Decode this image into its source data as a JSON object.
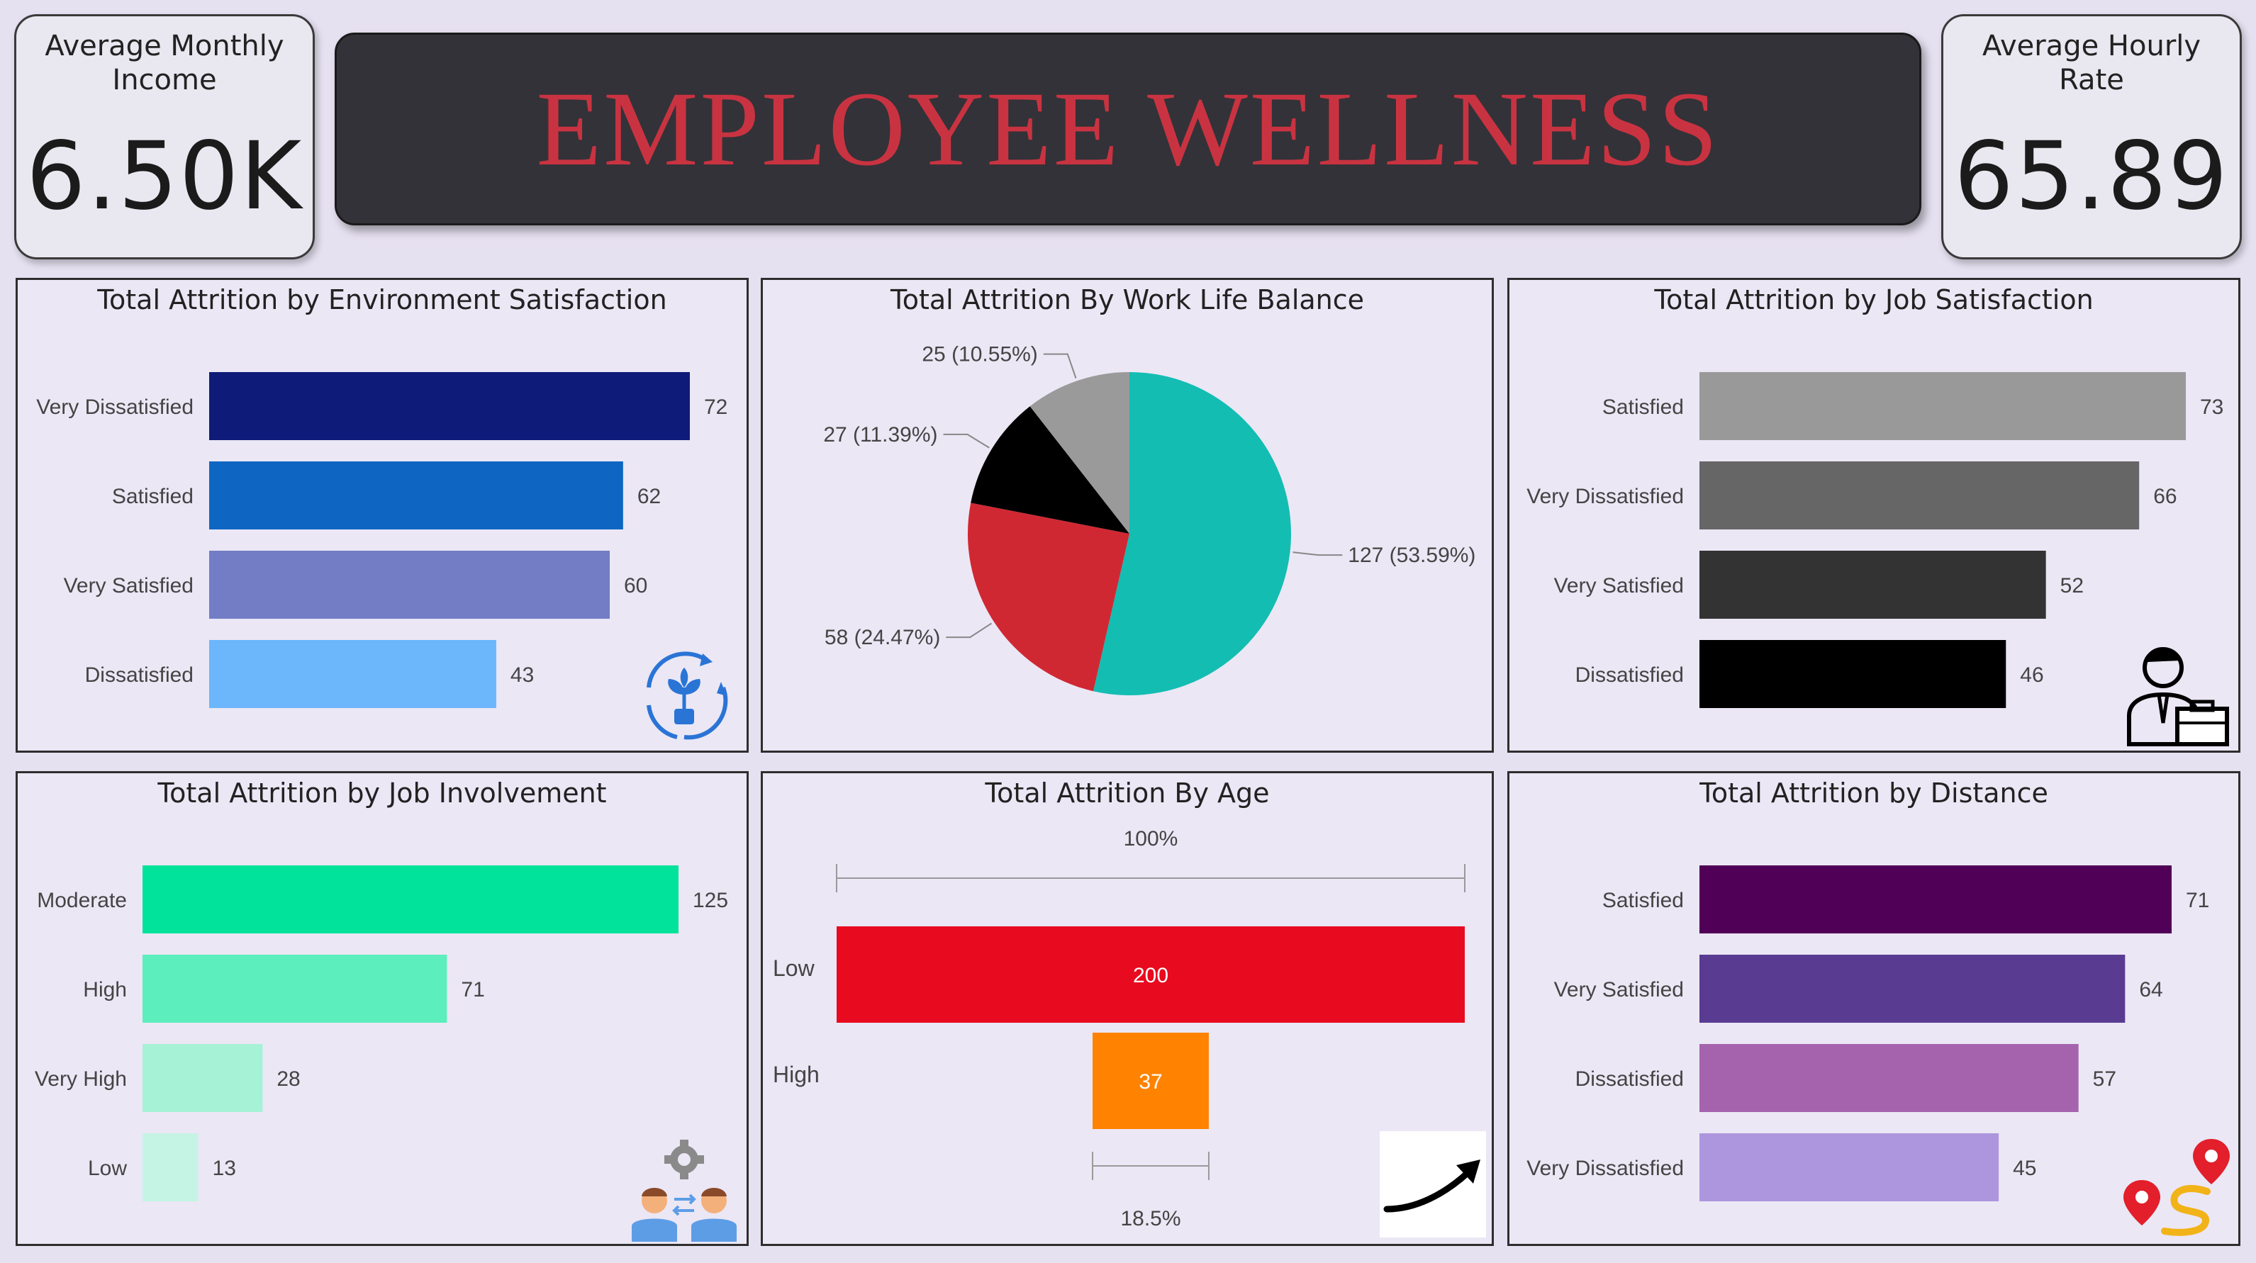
{
  "kpis": {
    "left": {
      "label": "Average Monthly Income",
      "value": "6.50K"
    },
    "right": {
      "label": "Average Hourly Rate",
      "value": "65.89"
    }
  },
  "banner": {
    "title": "EMPLOYEE WELLNESS"
  },
  "icons": {
    "p1": "plant-cycle-icon",
    "p3": "employee-briefcase-icon",
    "p4": "team-gear-icon",
    "p5": "trend-arrow-icon",
    "p6": "route-pins-icon"
  },
  "chart_data": [
    {
      "id": "p1",
      "type": "bar",
      "orientation": "horizontal",
      "title": "Total Attrition by Environment Satisfaction",
      "categories": [
        "Very Dissatisfied",
        "Satisfied",
        "Very Satisfied",
        "Dissatisfied"
      ],
      "values": [
        72,
        62,
        60,
        43
      ],
      "colors": [
        "#0f1b78",
        "#0e66c2",
        "#727dc5",
        "#6cb6fb"
      ],
      "xlim": [
        0,
        72
      ]
    },
    {
      "id": "p2",
      "type": "pie",
      "title": "Total Attrition By Work Life Balance",
      "slices": [
        {
          "value": 127,
          "label": "127 (53.59%)",
          "color": "#13bdb2"
        },
        {
          "value": 58,
          "label": "58 (24.47%)",
          "color": "#d02833"
        },
        {
          "value": 27,
          "label": "27 (11.39%)",
          "color": "#000000"
        },
        {
          "value": 25,
          "label": "25 (10.55%)",
          "color": "#9a9a9a"
        }
      ]
    },
    {
      "id": "p3",
      "type": "bar",
      "orientation": "horizontal",
      "title": "Total Attrition by Job Satisfaction",
      "categories": [
        "Satisfied",
        "Very Dissatisfied",
        "Very Satisfied",
        "Dissatisfied"
      ],
      "values": [
        73,
        66,
        52,
        46
      ],
      "colors": [
        "#999999",
        "#666666",
        "#333333",
        "#000000"
      ],
      "xlim": [
        0,
        73
      ]
    },
    {
      "id": "p4",
      "type": "bar",
      "orientation": "horizontal",
      "title": "Total Attrition by Job Involvement",
      "categories": [
        "Moderate",
        "High",
        "Very High",
        "Low"
      ],
      "values": [
        125,
        71,
        28,
        13
      ],
      "colors": [
        "#01e39a",
        "#5ceebd",
        "#a6f2d6",
        "#c5f4e4"
      ],
      "xlim": [
        0,
        125
      ]
    },
    {
      "id": "p5",
      "type": "funnel",
      "title": "Total Attrition By Age",
      "categories": [
        "Low",
        "High"
      ],
      "values": [
        200,
        37
      ],
      "colors": [
        "#e80a1e",
        "#ff8200"
      ],
      "top_label": "100%",
      "bottom_label": "18.5%"
    },
    {
      "id": "p6",
      "type": "bar",
      "orientation": "horizontal",
      "title": "Total Attrition by Distance",
      "categories": [
        "Satisfied",
        "Very Satisfied",
        "Dissatisfied",
        "Very Dissatisfied"
      ],
      "values": [
        71,
        64,
        57,
        45
      ],
      "colors": [
        "#510058",
        "#5a3b92",
        "#a563ae",
        "#ad96dd"
      ],
      "xlim": [
        0,
        71
      ]
    }
  ]
}
